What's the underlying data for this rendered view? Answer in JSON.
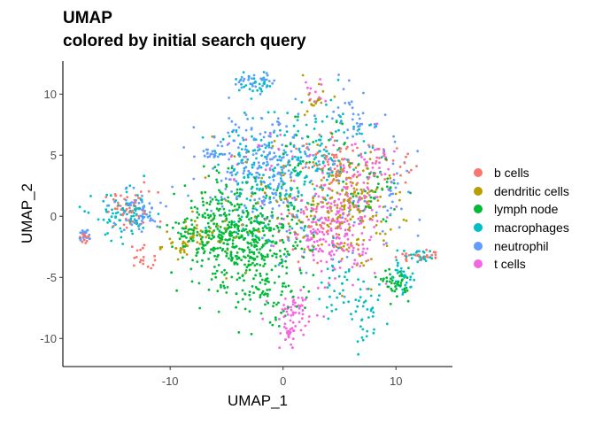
{
  "title": "UMAP",
  "subtitle": "colored by initial search query",
  "chart_data": {
    "type": "scatter",
    "title": "UMAP",
    "subtitle": "colored by initial search query",
    "xlabel": "UMAP_1",
    "ylabel": "UMAP_2",
    "xlim": [
      -19.5,
      15
    ],
    "ylim": [
      -12.3,
      12.7
    ],
    "xticks": [
      -10,
      0,
      10
    ],
    "yticks": [
      -10,
      -5,
      0,
      5,
      10
    ],
    "xtick_labels": [
      "-10",
      "0",
      "10"
    ],
    "ytick_labels": [
      "-10",
      "-5",
      "0",
      "5",
      "10"
    ],
    "grid": false,
    "legend_position": "right",
    "series": [
      {
        "name": "b cells",
        "color": "#F8766D",
        "clusters": [
          {
            "x": -13.5,
            "y": 0.4,
            "sx": 1.2,
            "sy": 0.8,
            "n": 55
          },
          {
            "x": -12.5,
            "y": -3.2,
            "sx": 0.5,
            "sy": 0.5,
            "n": 18
          },
          {
            "x": 4.5,
            "y": 4.5,
            "sx": 1.3,
            "sy": 1.1,
            "n": 60
          },
          {
            "x": 3.5,
            "y": -0.5,
            "sx": 2.2,
            "sy": 1.6,
            "n": 55
          },
          {
            "x": -17.5,
            "y": -1.6,
            "sx": 0.3,
            "sy": 0.3,
            "n": 12
          },
          {
            "x": 12.0,
            "y": -3.3,
            "sx": 1.0,
            "sy": 0.3,
            "n": 25
          },
          {
            "x": 9.0,
            "y": 4.5,
            "sx": 1.2,
            "sy": 0.9,
            "n": 25
          }
        ]
      },
      {
        "name": "dendritic cells",
        "color": "#B79F00",
        "clusters": [
          {
            "x": 5.5,
            "y": 1.5,
            "sx": 2.0,
            "sy": 1.6,
            "n": 150
          },
          {
            "x": -9.5,
            "y": -2.5,
            "sx": 1.0,
            "sy": 0.4,
            "n": 25
          },
          {
            "x": -7.5,
            "y": -1.4,
            "sx": 1.3,
            "sy": 0.6,
            "n": 30
          },
          {
            "x": 2.5,
            "y": 9.5,
            "sx": 0.8,
            "sy": 0.9,
            "n": 18
          },
          {
            "x": -2.0,
            "y": 1.0,
            "sx": 2.5,
            "sy": 2.5,
            "n": 40
          },
          {
            "x": 7.0,
            "y": -2.0,
            "sx": 1.5,
            "sy": 1.5,
            "n": 30
          }
        ]
      },
      {
        "name": "lymph node",
        "color": "#00BA38",
        "clusters": [
          {
            "x": -3.0,
            "y": -2.2,
            "sx": 2.7,
            "sy": 2.2,
            "n": 420
          },
          {
            "x": -5.5,
            "y": -1.0,
            "sx": 2.0,
            "sy": 1.8,
            "n": 120
          },
          {
            "x": 10.0,
            "y": -5.5,
            "sx": 0.6,
            "sy": 0.6,
            "n": 45
          },
          {
            "x": 8.0,
            "y": 2.0,
            "sx": 1.2,
            "sy": 1.2,
            "n": 40
          },
          {
            "x": -7.0,
            "y": -1.4,
            "sx": 1.5,
            "sy": 0.6,
            "n": 40
          },
          {
            "x": 2.0,
            "y": 4.0,
            "sx": 2.0,
            "sy": 2.0,
            "n": 40
          },
          {
            "x": -1.5,
            "y": -6.5,
            "sx": 1.5,
            "sy": 1.2,
            "n": 45
          }
        ]
      },
      {
        "name": "macrophages",
        "color": "#00BFC4",
        "clusters": [
          {
            "x": -14.0,
            "y": 0.0,
            "sx": 1.4,
            "sy": 1.0,
            "n": 80
          },
          {
            "x": -1.5,
            "y": 3.0,
            "sx": 2.5,
            "sy": 2.3,
            "n": 160
          },
          {
            "x": 4.0,
            "y": 6.0,
            "sx": 2.2,
            "sy": 2.0,
            "n": 90
          },
          {
            "x": 10.5,
            "y": -5.0,
            "sx": 0.6,
            "sy": 0.7,
            "n": 30
          },
          {
            "x": 7.5,
            "y": -8.5,
            "sx": 0.7,
            "sy": 1.2,
            "n": 35
          },
          {
            "x": -2.5,
            "y": 10.8,
            "sx": 0.9,
            "sy": 0.4,
            "n": 30
          },
          {
            "x": 12.0,
            "y": -3.3,
            "sx": 1.0,
            "sy": 0.3,
            "n": 25
          },
          {
            "x": 5.0,
            "y": -5.5,
            "sx": 1.2,
            "sy": 1.2,
            "n": 35
          }
        ]
      },
      {
        "name": "neutrophil",
        "color": "#619CFF",
        "clusters": [
          {
            "x": -2.0,
            "y": 4.5,
            "sx": 2.5,
            "sy": 2.2,
            "n": 230
          },
          {
            "x": -13.0,
            "y": 0.3,
            "sx": 1.3,
            "sy": 0.9,
            "n": 50
          },
          {
            "x": -17.5,
            "y": -1.5,
            "sx": 0.3,
            "sy": 0.3,
            "n": 18
          },
          {
            "x": -2.5,
            "y": 11.0,
            "sx": 0.8,
            "sy": 0.4,
            "n": 30
          },
          {
            "x": -6.0,
            "y": 5.0,
            "sx": 0.6,
            "sy": 0.4,
            "n": 20
          },
          {
            "x": 6.5,
            "y": 8.0,
            "sx": 1.0,
            "sy": 1.2,
            "n": 35
          },
          {
            "x": 2.5,
            "y": -1.0,
            "sx": 2.0,
            "sy": 2.0,
            "n": 40
          },
          {
            "x": 10.0,
            "y": 2.0,
            "sx": 1.0,
            "sy": 2.0,
            "n": 30
          }
        ]
      },
      {
        "name": "t cells",
        "color": "#F564E3",
        "clusters": [
          {
            "x": 4.5,
            "y": -1.0,
            "sx": 2.0,
            "sy": 2.0,
            "n": 230
          },
          {
            "x": 1.0,
            "y": -8.0,
            "sx": 1.0,
            "sy": 1.0,
            "n": 55
          },
          {
            "x": 0.5,
            "y": -9.5,
            "sx": 0.4,
            "sy": 0.5,
            "n": 20
          },
          {
            "x": 6.0,
            "y": 3.0,
            "sx": 1.5,
            "sy": 1.5,
            "n": 45
          },
          {
            "x": 8.5,
            "y": 4.3,
            "sx": 1.0,
            "sy": 0.7,
            "n": 20
          },
          {
            "x": 2.5,
            "y": 10.2,
            "sx": 0.7,
            "sy": 0.6,
            "n": 12
          },
          {
            "x": -2.0,
            "y": 4.0,
            "sx": 1.5,
            "sy": 1.5,
            "n": 20
          }
        ]
      }
    ]
  }
}
